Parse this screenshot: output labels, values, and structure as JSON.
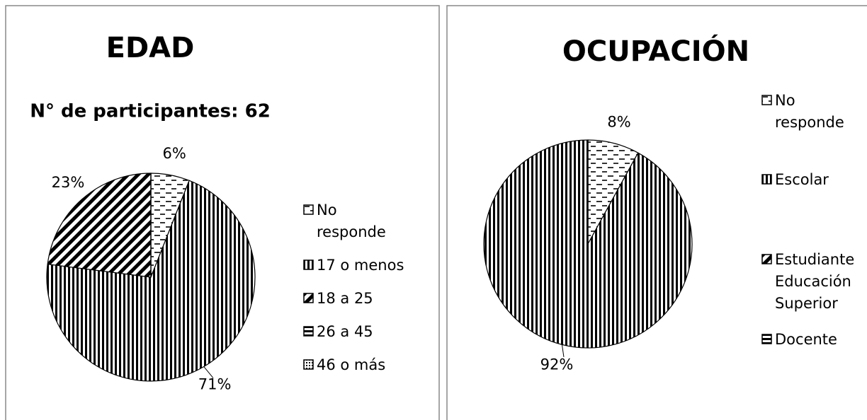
{
  "chart_data": [
    {
      "type": "pie",
      "title": "EDAD",
      "subtitle": "N° de participantes: 62",
      "categories": [
        "No responde",
        "17 o menos",
        "18 a 25",
        "26 a 45",
        "46 o más"
      ],
      "values": [
        6,
        71,
        23,
        0,
        0
      ],
      "value_labels": [
        "6%",
        "71%",
        "23%",
        null,
        null
      ],
      "patterns": [
        "dashes",
        "vertical",
        "diagonal",
        "horizontal",
        "dots"
      ],
      "color": "#000000",
      "legend": "right"
    },
    {
      "type": "pie",
      "title": "OCUPACIÓN",
      "categories": [
        "No responde",
        "Escolar",
        "Estudiante Educación Superior",
        "Docente"
      ],
      "values": [
        8,
        92,
        0,
        0
      ],
      "value_labels": [
        "8%",
        "92%",
        null,
        null
      ],
      "patterns": [
        "dashes",
        "vertical",
        "diagonal",
        "horizontal"
      ],
      "color": "#000000",
      "legend": "right"
    }
  ]
}
